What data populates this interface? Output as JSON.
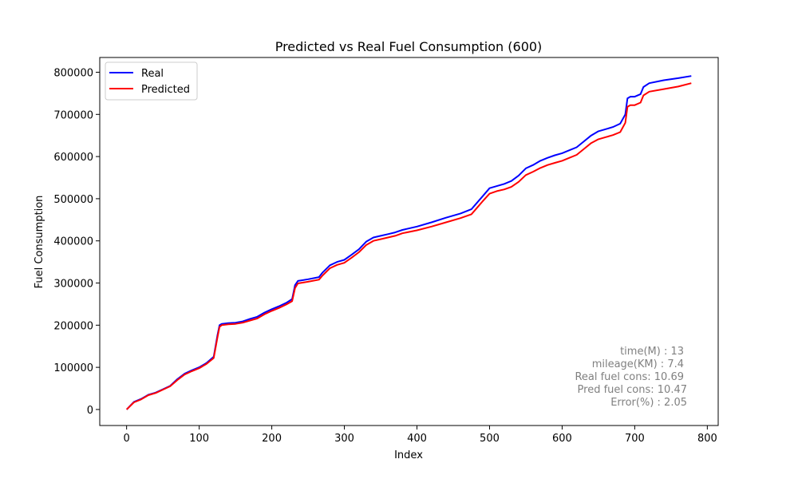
{
  "chart_data": {
    "type": "line",
    "title": "Predicted vs Real Fuel Consumption (600)",
    "xlabel": "Index",
    "ylabel": "Fuel Consumption",
    "xlim": [
      -37,
      815
    ],
    "ylim": [
      -38000,
      835000
    ],
    "x_ticks": [
      0,
      100,
      200,
      300,
      400,
      500,
      600,
      700,
      800
    ],
    "y_ticks": [
      0,
      100000,
      200000,
      300000,
      400000,
      500000,
      600000,
      700000,
      800000
    ],
    "grid": false,
    "legend_position": "upper-left",
    "series": [
      {
        "name": "Real",
        "color": "#0000ff",
        "x": [
          0,
          10,
          20,
          25,
          30,
          40,
          50,
          60,
          70,
          80,
          90,
          100,
          110,
          120,
          125,
          128,
          131,
          140,
          150,
          160,
          170,
          180,
          190,
          200,
          210,
          220,
          228,
          232,
          236,
          250,
          265,
          270,
          280,
          290,
          300,
          310,
          320,
          330,
          340,
          350,
          360,
          370,
          380,
          400,
          420,
          440,
          460,
          475,
          480,
          490,
          500,
          510,
          520,
          530,
          540,
          550,
          560,
          570,
          580,
          590,
          600,
          610,
          620,
          630,
          640,
          650,
          660,
          670,
          680,
          687,
          690,
          694,
          700,
          708,
          712,
          720,
          740,
          760,
          778
        ],
        "values": [
          0,
          18000,
          25000,
          30000,
          35000,
          40000,
          48000,
          56000,
          72000,
          85000,
          93000,
          100000,
          110000,
          125000,
          175000,
          200000,
          203000,
          205000,
          206000,
          209000,
          215000,
          220000,
          230000,
          238000,
          245000,
          253000,
          262000,
          295000,
          305000,
          309000,
          314000,
          325000,
          342000,
          350000,
          355000,
          367000,
          380000,
          398000,
          408000,
          412000,
          416000,
          420000,
          426000,
          434000,
          444000,
          455000,
          465000,
          475000,
          485000,
          505000,
          525000,
          530000,
          535000,
          542000,
          555000,
          572000,
          580000,
          590000,
          597000,
          603000,
          608000,
          615000,
          622000,
          636000,
          650000,
          660000,
          665000,
          670000,
          678000,
          700000,
          738000,
          742000,
          742000,
          748000,
          765000,
          774000,
          781000,
          786000,
          791000
        ]
      },
      {
        "name": "Predicted",
        "color": "#ff0000",
        "x": [
          0,
          10,
          20,
          25,
          30,
          40,
          50,
          60,
          70,
          80,
          90,
          100,
          110,
          120,
          125,
          128,
          131,
          140,
          150,
          160,
          170,
          180,
          190,
          200,
          210,
          220,
          228,
          232,
          236,
          250,
          265,
          270,
          280,
          290,
          300,
          310,
          320,
          330,
          340,
          350,
          360,
          370,
          380,
          400,
          420,
          440,
          460,
          475,
          480,
          490,
          500,
          510,
          520,
          530,
          540,
          550,
          560,
          570,
          580,
          590,
          600,
          610,
          620,
          630,
          640,
          650,
          660,
          670,
          680,
          687,
          690,
          694,
          700,
          708,
          712,
          720,
          740,
          760,
          778
        ],
        "values": [
          0,
          17000,
          24000,
          29000,
          34000,
          39000,
          47000,
          55000,
          70000,
          83000,
          91000,
          98000,
          108000,
          122000,
          170000,
          196000,
          200000,
          202000,
          203000,
          206000,
          211000,
          216000,
          226000,
          234000,
          241000,
          249000,
          257000,
          288000,
          299000,
          303000,
          308000,
          318000,
          335000,
          343000,
          348000,
          360000,
          373000,
          390000,
          400000,
          404000,
          408000,
          412000,
          418000,
          425000,
          434000,
          444000,
          454000,
          463000,
          473000,
          493000,
          512000,
          518000,
          522000,
          528000,
          540000,
          556000,
          564000,
          573000,
          580000,
          585000,
          590000,
          597000,
          604000,
          618000,
          632000,
          641000,
          646000,
          651000,
          658000,
          680000,
          718000,
          722000,
          722000,
          728000,
          745000,
          754000,
          760000,
          766000,
          774000
        ]
      }
    ],
    "annotation_lines": [
      "time(M) : 13",
      "mileage(KM) : 7.4",
      "Real fuel cons: 10.69",
      "Pred fuel cons: 10.47",
      "Error(%) : 2.05"
    ],
    "annotation_color": "#808080"
  }
}
